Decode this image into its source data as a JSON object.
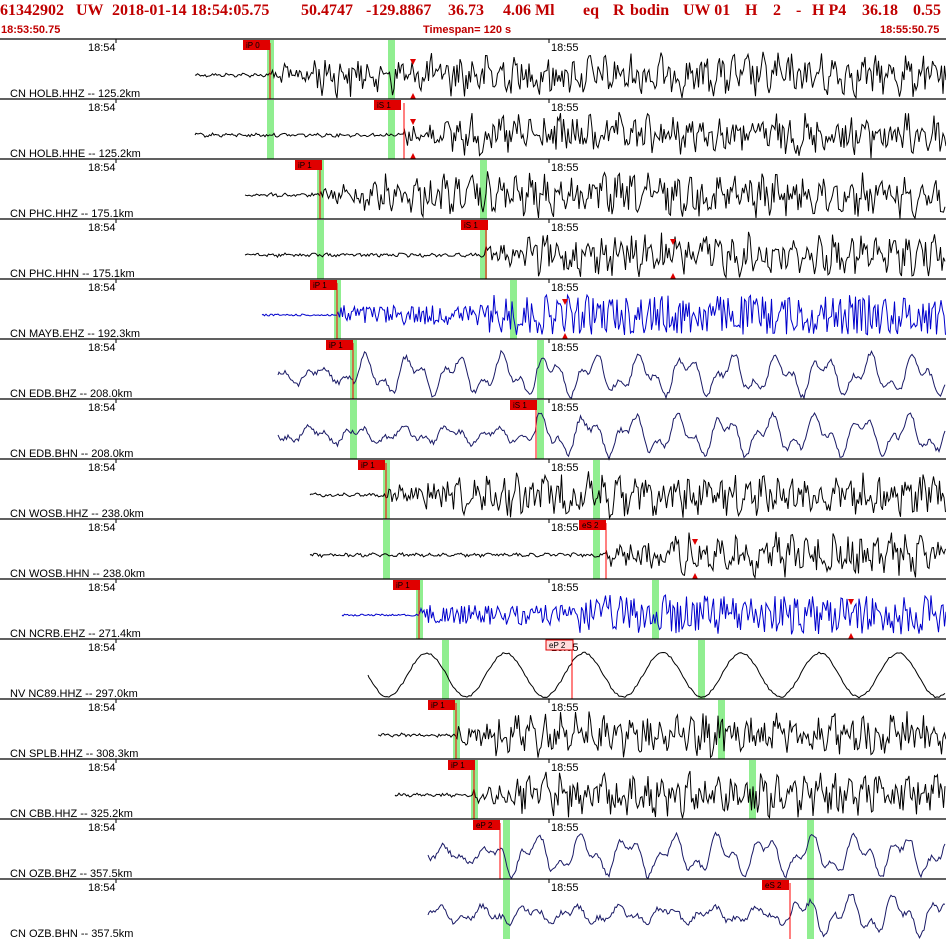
{
  "header": {
    "event_id": "61342902",
    "network": "UW",
    "datetime": "2018-01-14 18:54:05.75",
    "lat": "50.4747",
    "lon": "-129.8867",
    "depth": "36.73",
    "magnitude": "4.06 Ml",
    "etype": "eq",
    "review": "R",
    "analyst": "bodin",
    "source": "UW 01",
    "flag": "H",
    "version": "2",
    "dash": "-",
    "hp": "H P4",
    "value1": "36.18",
    "value2": "0.55"
  },
  "subheader": {
    "start_time": "18:53:50.75",
    "timespan": "Timespan= 120 s",
    "end_time": "18:55:50.75"
  },
  "time_markers": {
    "first": "18:54",
    "second": "18:55"
  },
  "colors": {
    "header_text": "#c00000",
    "trace_black": "#000000",
    "trace_blue": "#0000cc",
    "trace_navy": "#1a1a66",
    "pick_fill": "#e00000",
    "pick_fill_light": "#ffdddd",
    "green_band": "#90ee90",
    "pick_line": "#ff0000"
  },
  "channels": [
    {
      "label": "CN HOLB.HHZ -- 125.2km",
      "color": "black",
      "pick": "iP 0",
      "pick_style": "red",
      "waveform": "strong"
    },
    {
      "label": "CN HOLB.HHE -- 125.2km",
      "color": "black",
      "pick": "iS 1",
      "pick_style": "red",
      "waveform": "strong"
    },
    {
      "label": "CN PHC.HHZ -- 175.1km",
      "color": "black",
      "pick": "iP 1",
      "pick_style": "red",
      "waveform": "strong"
    },
    {
      "label": "CN PHC.HHN -- 175.1km",
      "color": "black",
      "pick": "iS 1",
      "pick_style": "red",
      "waveform": "strong"
    },
    {
      "label": "CN MAYB.EHZ -- 192.3km",
      "color": "blue",
      "pick": "iP 1",
      "pick_style": "red",
      "waveform": "noisy"
    },
    {
      "label": "CN EDB.BHZ -- 208.0km",
      "color": "navy",
      "pick": "iP 1",
      "pick_style": "red",
      "waveform": "smooth"
    },
    {
      "label": "CN EDB.BHN -- 208.0km",
      "color": "navy",
      "pick": "iS 1",
      "pick_style": "red",
      "waveform": "smooth"
    },
    {
      "label": "CN WOSB.HHZ -- 238.0km",
      "color": "black",
      "pick": "iP 1",
      "pick_style": "red",
      "waveform": "strong"
    },
    {
      "label": "CN WOSB.HHN -- 238.0km",
      "color": "black",
      "pick": "eS 2",
      "pick_style": "red",
      "waveform": "strong"
    },
    {
      "label": "CN NCRB.EHZ -- 271.4km",
      "color": "blue",
      "pick": "iP 1",
      "pick_style": "red",
      "waveform": "noisy"
    },
    {
      "label": "NV NC89.HHZ -- 297.0km",
      "color": "black",
      "pick": "eP 2",
      "pick_style": "light",
      "waveform": "longperiod"
    },
    {
      "label": "CN SPLB.HHZ -- 308.3km",
      "color": "black",
      "pick": "iP 1",
      "pick_style": "red",
      "waveform": "strong"
    },
    {
      "label": "CN CBB.HHZ -- 325.2km",
      "color": "black",
      "pick": "iP 1",
      "pick_style": "red",
      "waveform": "strong"
    },
    {
      "label": "CN OZB.BHZ -- 357.5km",
      "color": "navy",
      "pick": "eP 2",
      "pick_style": "red",
      "waveform": "smooth"
    },
    {
      "label": "CN OZB.BHN -- 357.5km",
      "color": "navy",
      "pick": "eS 2",
      "pick_style": "red",
      "waveform": "smooth"
    }
  ]
}
